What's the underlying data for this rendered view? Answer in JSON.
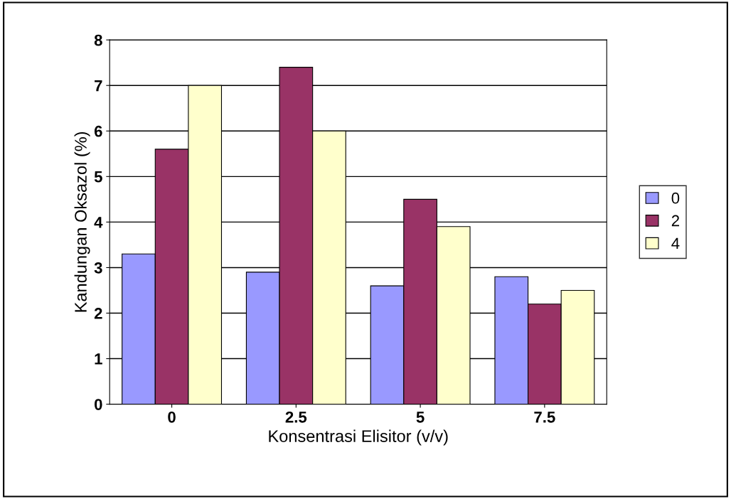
{
  "chart_data": {
    "type": "bar",
    "xlabel": "Konsentrasi Elisitor (v/v)",
    "ylabel": "Kandungan Oksazol (%)",
    "categories": [
      "0",
      "2.5",
      "5",
      "7.5"
    ],
    "series": [
      {
        "name": "0",
        "color": "#9999ff",
        "values": [
          3.3,
          2.9,
          2.6,
          2.8
        ]
      },
      {
        "name": "2",
        "color": "#993366",
        "values": [
          5.6,
          7.4,
          4.5,
          2.2
        ]
      },
      {
        "name": "4",
        "color": "#ffffcc",
        "values": [
          7.0,
          6.0,
          3.9,
          2.5
        ]
      }
    ],
    "ylim": [
      0,
      8
    ],
    "yticks": [
      0,
      1,
      2,
      3,
      4,
      5,
      6,
      7,
      8
    ],
    "grid": "y",
    "legend": "right"
  }
}
